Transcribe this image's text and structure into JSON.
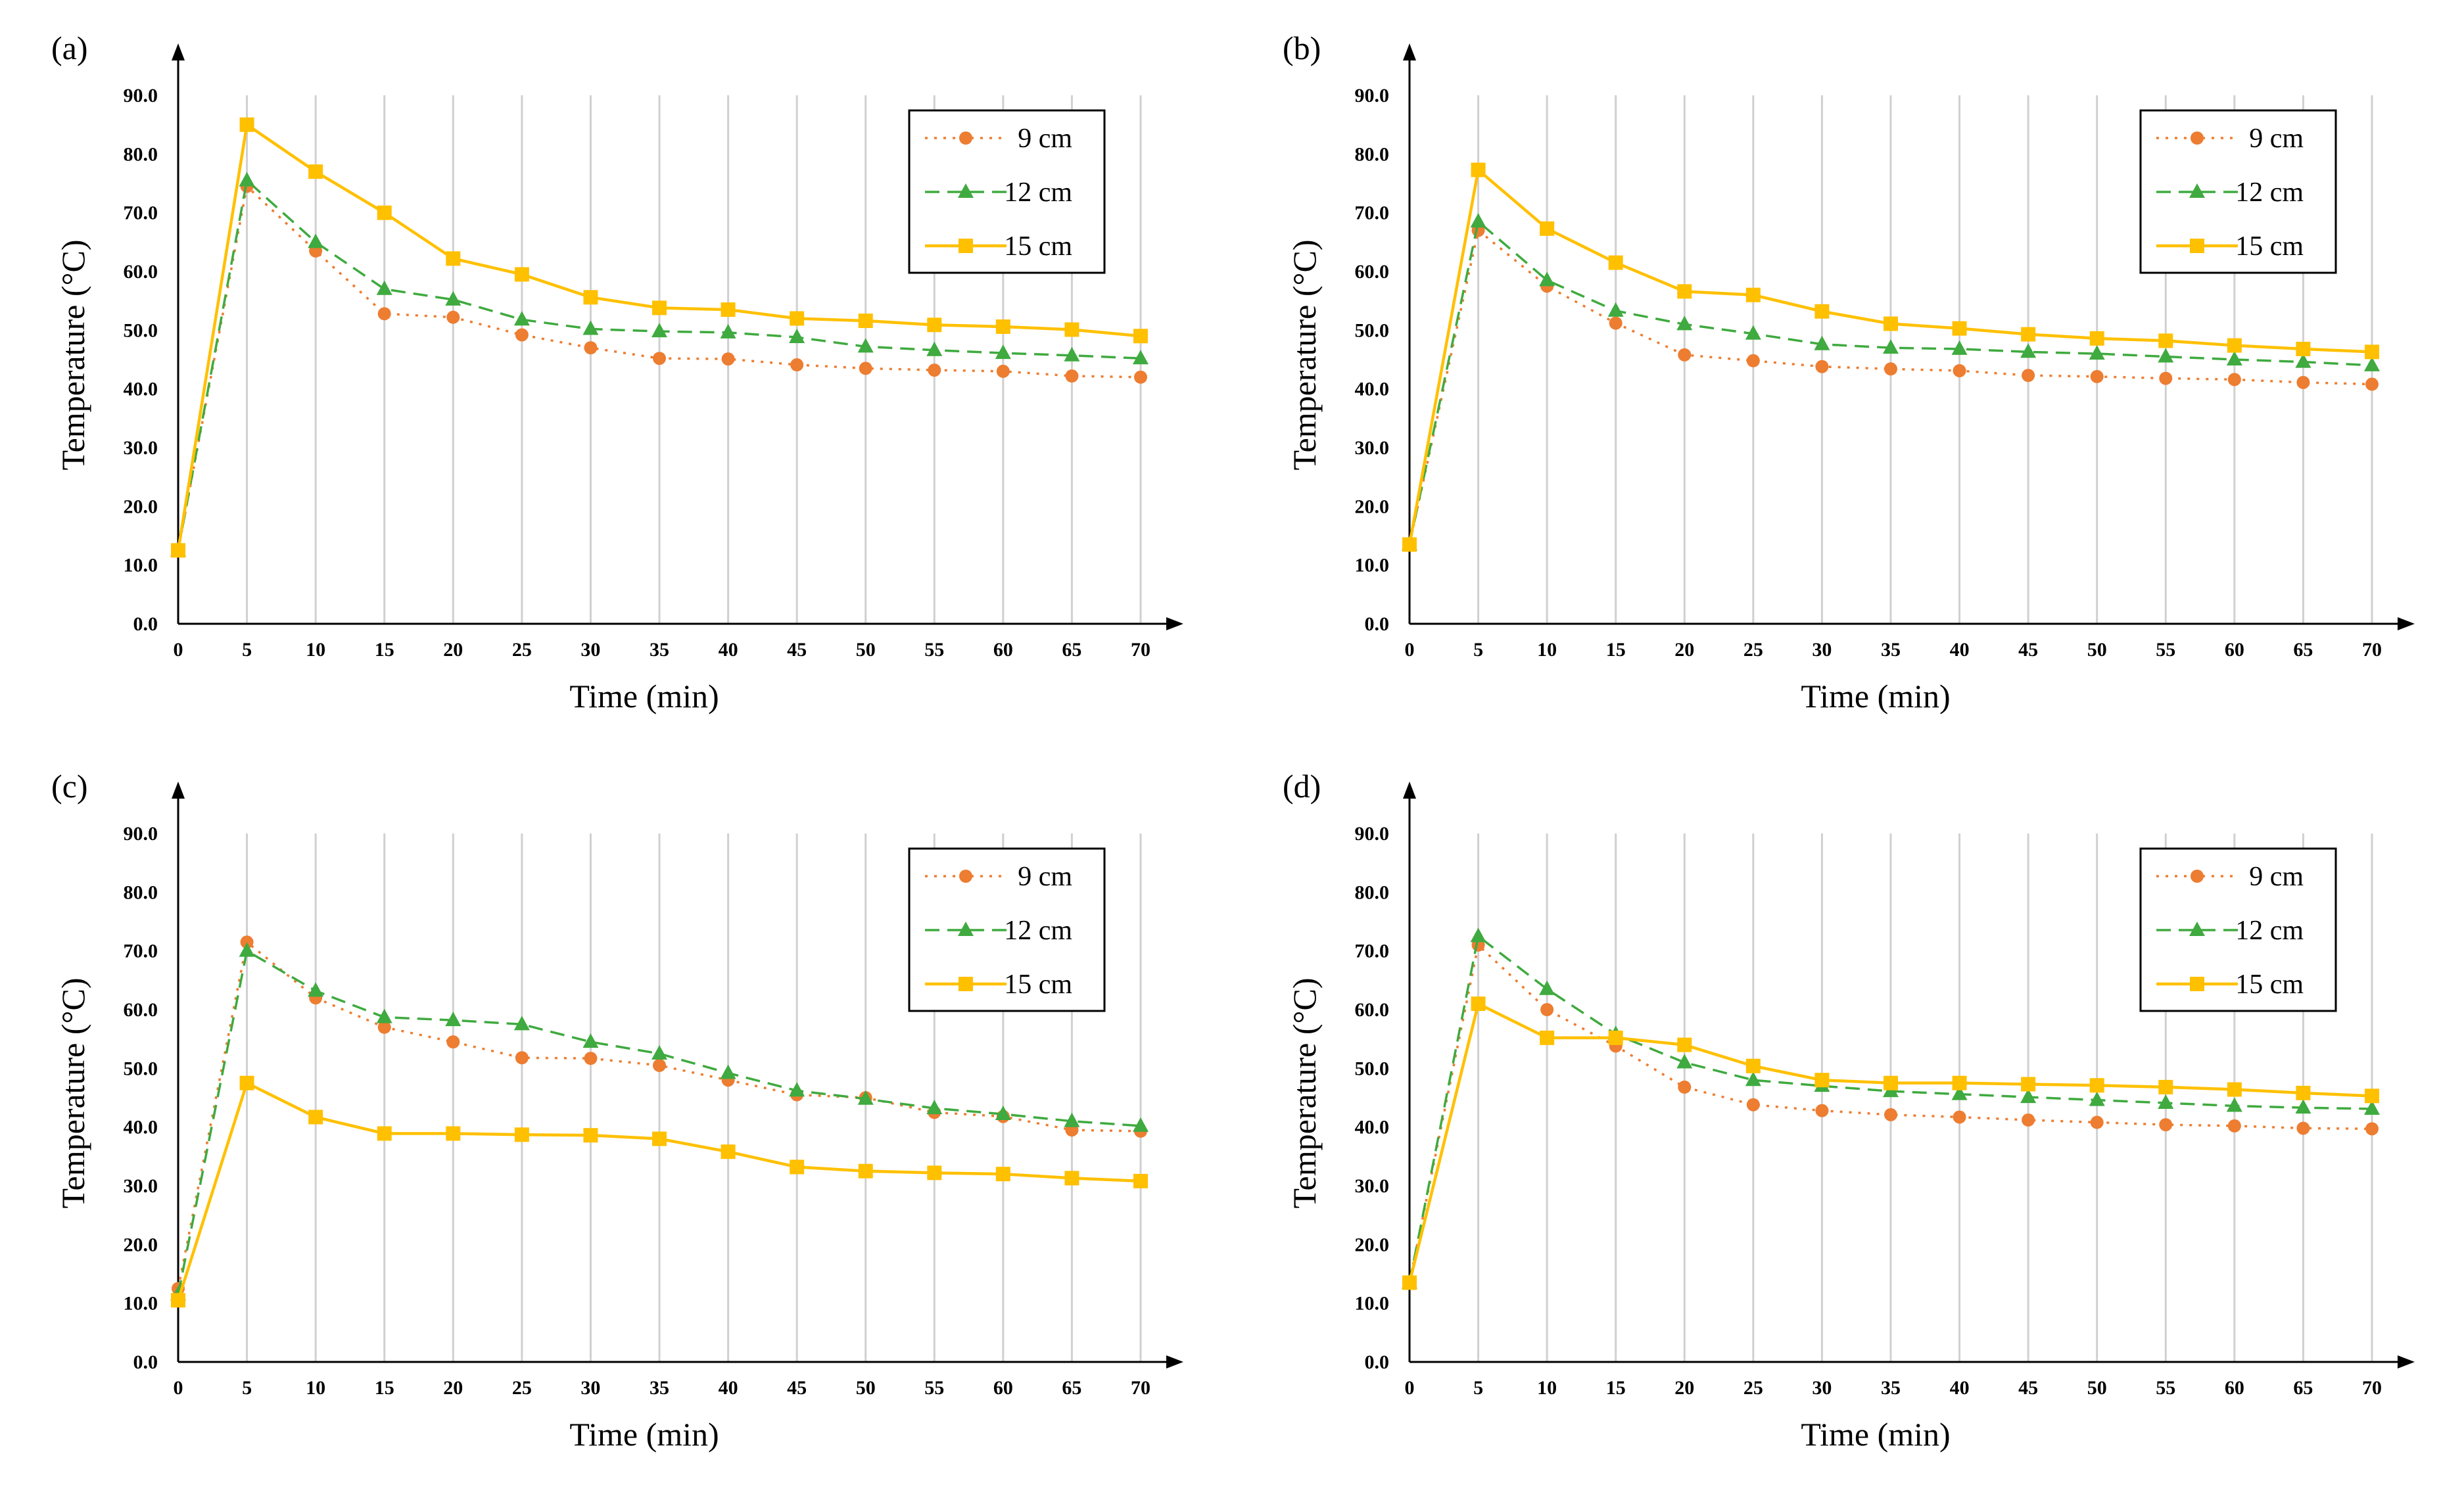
{
  "chart_data": [
    {
      "type": "line",
      "panel_label": "(a)",
      "xlabel": "Time (min)",
      "ylabel": "Temperature (°C)",
      "x": [
        0,
        5,
        10,
        15,
        20,
        25,
        30,
        35,
        40,
        45,
        50,
        55,
        60,
        65,
        70
      ],
      "x_tick_labels": [
        "0",
        "5",
        "10",
        "15",
        "20",
        "25",
        "30",
        "35",
        "40",
        "45",
        "50",
        "55",
        "60",
        "65",
        "70"
      ],
      "ylim": [
        0,
        90
      ],
      "y_tick_labels": [
        "0.0",
        "10.0",
        "20.0",
        "30.0",
        "40.0",
        "50.0",
        "60.0",
        "70.0",
        "80.0",
        "90.0"
      ],
      "grid": "vertical",
      "legend_position": "top-right",
      "series": [
        {
          "name": "9 cm",
          "values": [
            12.5,
            74.5,
            63.5,
            52.8,
            52.2,
            49.2,
            47.0,
            45.2,
            45.1,
            44.1,
            43.5,
            43.2,
            43.0,
            42.2,
            42.0
          ]
        },
        {
          "name": "12 cm",
          "values": [
            12.5,
            75.5,
            65.0,
            57.0,
            55.2,
            51.8,
            50.2,
            49.8,
            49.6,
            48.8,
            47.2,
            46.6,
            46.1,
            45.7,
            45.2
          ]
        },
        {
          "name": "15 cm",
          "values": [
            12.5,
            85.0,
            77.0,
            70.0,
            62.2,
            59.5,
            55.6,
            53.8,
            53.5,
            52.0,
            51.6,
            50.9,
            50.6,
            50.1,
            49.0
          ]
        }
      ]
    },
    {
      "type": "line",
      "panel_label": "(b)",
      "xlabel": "Time (min)",
      "ylabel": "Temperature (°C)",
      "x": [
        0,
        5,
        10,
        15,
        20,
        25,
        30,
        35,
        40,
        45,
        50,
        55,
        60,
        65,
        70
      ],
      "x_tick_labels": [
        "0",
        "5",
        "10",
        "15",
        "20",
        "25",
        "30",
        "35",
        "40",
        "45",
        "50",
        "55",
        "60",
        "65",
        "70"
      ],
      "ylim": [
        0,
        90
      ],
      "y_tick_labels": [
        "0.0",
        "10.0",
        "20.0",
        "30.0",
        "40.0",
        "50.0",
        "60.0",
        "70.0",
        "80.0",
        "90.0"
      ],
      "grid": "vertical",
      "legend_position": "top-right",
      "series": [
        {
          "name": "9 cm",
          "values": [
            13.5,
            67.0,
            57.5,
            51.2,
            45.8,
            44.8,
            43.8,
            43.4,
            43.1,
            42.3,
            42.1,
            41.8,
            41.6,
            41.1,
            40.8
          ]
        },
        {
          "name": "12 cm",
          "values": [
            13.5,
            68.5,
            58.5,
            53.3,
            51.0,
            49.4,
            47.6,
            47.0,
            46.8,
            46.3,
            46.0,
            45.5,
            45.0,
            44.6,
            44.0
          ]
        },
        {
          "name": "15 cm",
          "values": [
            13.5,
            77.3,
            67.3,
            61.5,
            56.6,
            56.0,
            53.2,
            51.1,
            50.3,
            49.3,
            48.6,
            48.2,
            47.4,
            46.8,
            46.3
          ]
        }
      ]
    },
    {
      "type": "line",
      "panel_label": "(c)",
      "xlabel": "Time (min)",
      "ylabel": "Temperature (°C)",
      "x": [
        0,
        5,
        10,
        15,
        20,
        25,
        30,
        35,
        40,
        45,
        50,
        55,
        60,
        65,
        70
      ],
      "x_tick_labels": [
        "0",
        "5",
        "10",
        "15",
        "20",
        "25",
        "30",
        "35",
        "40",
        "45",
        "50",
        "55",
        "60",
        "65",
        "70"
      ],
      "ylim": [
        0,
        90
      ],
      "y_tick_labels": [
        "0.0",
        "10.0",
        "20.0",
        "30.0",
        "40.0",
        "50.0",
        "60.0",
        "70.0",
        "80.0",
        "90.0"
      ],
      "grid": "vertical",
      "legend_position": "top-right",
      "series": [
        {
          "name": "9 cm",
          "values": [
            12.5,
            71.5,
            62.0,
            57.0,
            54.5,
            51.8,
            51.7,
            50.5,
            48.0,
            45.5,
            45.0,
            42.5,
            41.8,
            39.5,
            39.3
          ]
        },
        {
          "name": "12 cm",
          "values": [
            11.5,
            70.0,
            63.2,
            58.7,
            58.2,
            57.5,
            54.5,
            52.5,
            49.2,
            46.2,
            44.8,
            43.2,
            42.2,
            41.0,
            40.2
          ]
        },
        {
          "name": "15 cm",
          "values": [
            10.5,
            47.5,
            41.7,
            38.9,
            38.9,
            38.7,
            38.6,
            38.0,
            35.8,
            33.2,
            32.5,
            32.2,
            32.0,
            31.3,
            30.8
          ]
        }
      ]
    },
    {
      "type": "line",
      "panel_label": "(d)",
      "xlabel": "Time (min)",
      "ylabel": "Temperature (°C)",
      "x": [
        0,
        5,
        10,
        15,
        20,
        25,
        30,
        35,
        40,
        45,
        50,
        55,
        60,
        65,
        70
      ],
      "x_tick_labels": [
        "0",
        "5",
        "10",
        "15",
        "20",
        "25",
        "30",
        "35",
        "40",
        "45",
        "50",
        "55",
        "60",
        "65",
        "70"
      ],
      "ylim": [
        0,
        90
      ],
      "y_tick_labels": [
        "0.0",
        "10.0",
        "20.0",
        "30.0",
        "40.0",
        "50.0",
        "60.0",
        "70.0",
        "80.0",
        "90.0"
      ],
      "grid": "vertical",
      "legend_position": "top-right",
      "series": [
        {
          "name": "9 cm",
          "values": [
            13.5,
            71.0,
            60.0,
            53.8,
            46.8,
            43.8,
            42.8,
            42.1,
            41.7,
            41.2,
            40.8,
            40.4,
            40.2,
            39.8,
            39.7
          ]
        },
        {
          "name": "12 cm",
          "values": [
            13.5,
            72.5,
            63.5,
            55.8,
            51.0,
            48.0,
            47.0,
            46.1,
            45.6,
            45.1,
            44.6,
            44.1,
            43.6,
            43.3,
            43.1
          ]
        },
        {
          "name": "15 cm",
          "values": [
            13.5,
            61.0,
            55.2,
            55.2,
            54.0,
            50.4,
            48.0,
            47.5,
            47.5,
            47.3,
            47.1,
            46.8,
            46.4,
            45.8,
            45.3
          ]
        }
      ]
    }
  ],
  "series_styles": [
    {
      "color": "#ED7D31",
      "marker": "circle",
      "dash": "4,10"
    },
    {
      "color": "#3FAA3F",
      "marker": "triangle",
      "dash": "22,12"
    },
    {
      "color": "#FFC000",
      "marker": "square",
      "dash": ""
    }
  ],
  "grid_color": "#D0D0D0",
  "axis_color": "#000000"
}
